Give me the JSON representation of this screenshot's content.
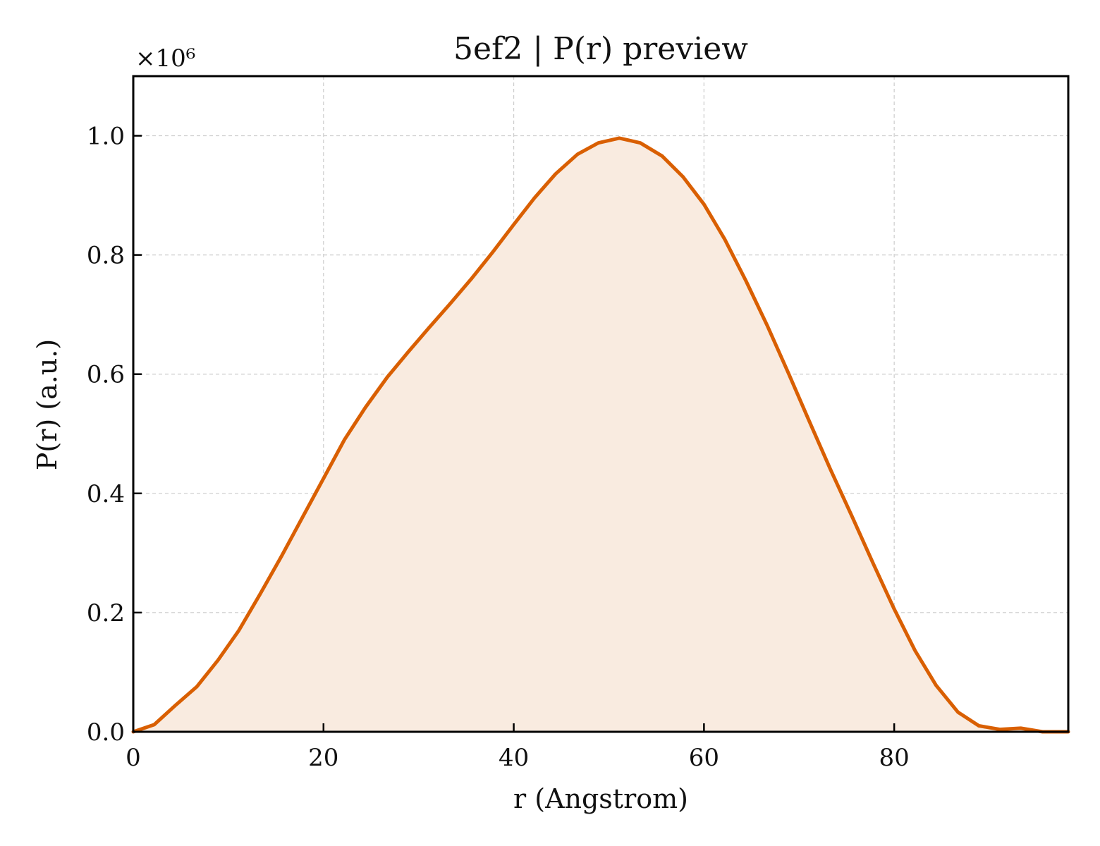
{
  "chart_data": {
    "type": "area",
    "title": "5ef2 | P(r) preview",
    "xlabel": "r (Angstrom)",
    "ylabel": "P(r) (a.u.)",
    "y_multiplier_label": "×10⁶",
    "xlim": [
      0,
      98.3
    ],
    "ylim": [
      0,
      1.1
    ],
    "x_ticks": [
      0,
      20,
      40,
      60,
      80
    ],
    "y_ticks": [
      0.0,
      0.2,
      0.4,
      0.6,
      0.8,
      1.0
    ],
    "x_tick_labels": [
      "0",
      "20",
      "40",
      "60",
      "80"
    ],
    "y_tick_labels": [
      "0.0",
      "0.2",
      "0.4",
      "0.6",
      "0.8",
      "1.0"
    ],
    "grid": true,
    "colors": {
      "line": "#d95f02",
      "fill": "#f9ebe0",
      "grid": "#cccccc",
      "axes": "#000000"
    },
    "series": [
      {
        "x": [
          0,
          2.2,
          4.4,
          6.7,
          8.9,
          11.1,
          13.3,
          15.6,
          17.8,
          20.0,
          22.2,
          24.4,
          26.7,
          28.9,
          31.1,
          33.3,
          35.6,
          37.8,
          40.0,
          42.2,
          44.4,
          46.7,
          48.9,
          51.1,
          53.3,
          55.6,
          57.8,
          60.0,
          62.2,
          64.4,
          66.7,
          68.9,
          71.1,
          73.3,
          75.6,
          77.8,
          80.0,
          82.2,
          84.4,
          86.7,
          88.9,
          91.1,
          93.3,
          95.6,
          98.3
        ],
        "y": [
          0.0,
          0.012,
          0.044,
          0.076,
          0.12,
          0.17,
          0.23,
          0.295,
          0.36,
          0.425,
          0.49,
          0.544,
          0.595,
          0.637,
          0.678,
          0.718,
          0.761,
          0.805,
          0.851,
          0.896,
          0.936,
          0.969,
          0.988,
          0.996,
          0.988,
          0.966,
          0.931,
          0.885,
          0.826,
          0.757,
          0.68,
          0.601,
          0.52,
          0.44,
          0.36,
          0.282,
          0.206,
          0.136,
          0.078,
          0.033,
          0.01,
          0.004,
          0.006,
          0.0,
          0.0
        ]
      }
    ]
  }
}
